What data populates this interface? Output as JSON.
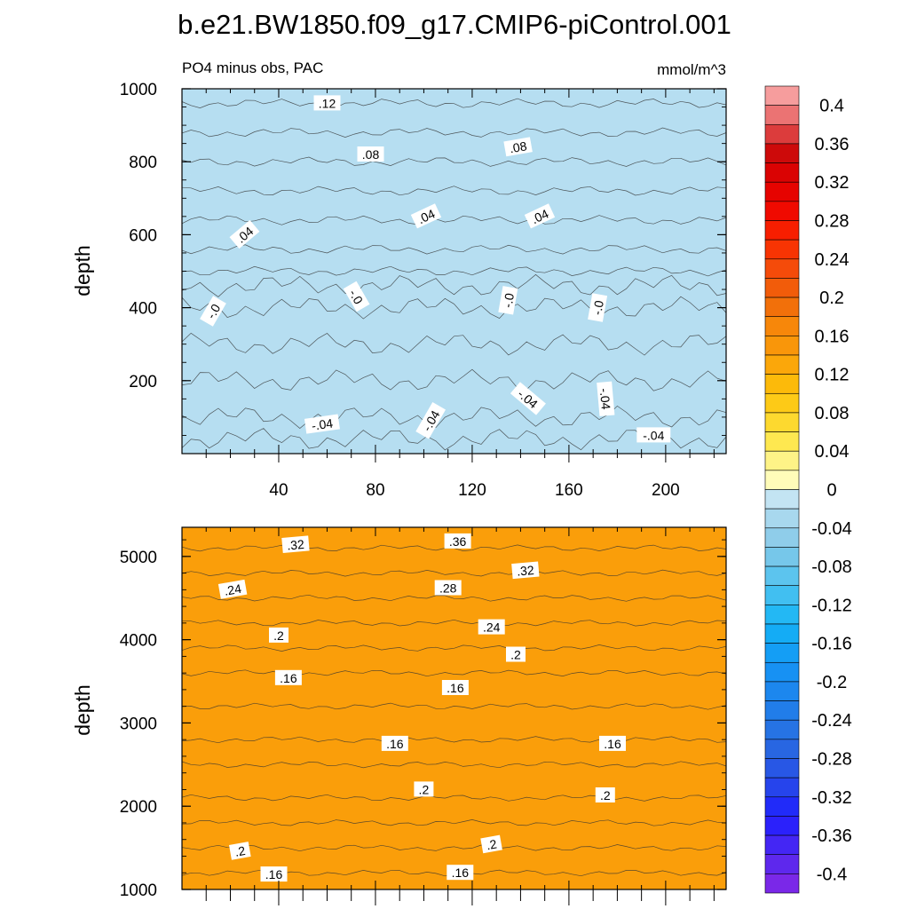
{
  "title": "b.e21.BW1850.f09_g17.CMIP6-piControl.001",
  "chart_data": [
    {
      "type": "contour",
      "panel": "upper",
      "subtitle_left": "PO4 minus obs, PAC",
      "subtitle_right": "mmol/m^3",
      "ylabel": "depth",
      "xlim": [
        0,
        225
      ],
      "ylim": [
        1000,
        0
      ],
      "x_ticks": [
        40,
        80,
        120,
        160,
        200
      ],
      "x_tick_labels": [
        "40",
        "80",
        "120",
        "160",
        "200"
      ],
      "y_ticks": [
        200,
        400,
        600,
        800,
        1000
      ],
      "y_tick_labels": [
        "200",
        "400",
        "600",
        "800",
        "1000"
      ],
      "bands": [
        {
          "depth": 0,
          "value": -0.02
        },
        {
          "depth": 40,
          "value": -0.03
        },
        {
          "depth": 100,
          "value": -0.04
        },
        {
          "depth": 200,
          "value": -0.03
        },
        {
          "depth": 300,
          "value": -0.02
        },
        {
          "depth": 400,
          "value": -0.01
        },
        {
          "depth": 460,
          "value": 0.0
        },
        {
          "depth": 500,
          "value": 0.01
        },
        {
          "depth": 560,
          "value": 0.03
        },
        {
          "depth": 640,
          "value": 0.04
        },
        {
          "depth": 720,
          "value": 0.06
        },
        {
          "depth": 800,
          "value": 0.08
        },
        {
          "depth": 880,
          "value": 0.1
        },
        {
          "depth": 960,
          "value": 0.12
        },
        {
          "depth": 1000,
          "value": 0.13
        }
      ],
      "contour_labels": [
        {
          "text": "-.04",
          "x": 58,
          "depth": 80,
          "angle": -8
        },
        {
          "text": "-.04",
          "x": 103,
          "depth": 90,
          "angle": -60
        },
        {
          "text": "-.04",
          "x": 143,
          "depth": 150,
          "angle": 40
        },
        {
          "text": "-.04",
          "x": 175,
          "depth": 150,
          "angle": 85
        },
        {
          "text": "-.04",
          "x": 195,
          "depth": 50,
          "angle": 0
        },
        {
          "text": "-.0",
          "x": 13,
          "depth": 390,
          "angle": -60
        },
        {
          "text": "-.0",
          "x": 72,
          "depth": 430,
          "angle": 60
        },
        {
          "text": "-.0",
          "x": 135,
          "depth": 420,
          "angle": -80
        },
        {
          "text": "-.0",
          "x": 172,
          "depth": 400,
          "angle": -80
        },
        {
          "text": ".04",
          "x": 26,
          "depth": 600,
          "angle": -40
        },
        {
          "text": ".04",
          "x": 101,
          "depth": 650,
          "angle": -25
        },
        {
          "text": ".04",
          "x": 148,
          "depth": 650,
          "angle": -25
        },
        {
          "text": ".08",
          "x": 78,
          "depth": 820,
          "angle": 0
        },
        {
          "text": ".08",
          "x": 139,
          "depth": 840,
          "angle": -10
        },
        {
          "text": ".12",
          "x": 60,
          "depth": 960,
          "angle": 0
        }
      ]
    },
    {
      "type": "contour",
      "panel": "lower",
      "ylabel": "depth",
      "xlim": [
        0,
        225
      ],
      "ylim": [
        5350,
        1000
      ],
      "y_ticks": [
        1000,
        2000,
        3000,
        4000,
        5000
      ],
      "y_tick_labels": [
        "1000",
        "2000",
        "3000",
        "4000",
        "5000"
      ],
      "bands": [
        {
          "depth": 1000,
          "value": 0.14
        },
        {
          "depth": 1200,
          "value": 0.16
        },
        {
          "depth": 1500,
          "value": 0.18
        },
        {
          "depth": 1800,
          "value": 0.2
        },
        {
          "depth": 2100,
          "value": 0.2
        },
        {
          "depth": 2500,
          "value": 0.18
        },
        {
          "depth": 2800,
          "value": 0.16
        },
        {
          "depth": 3200,
          "value": 0.15
        },
        {
          "depth": 3600,
          "value": 0.16
        },
        {
          "depth": 3900,
          "value": 0.19
        },
        {
          "depth": 4200,
          "value": 0.23
        },
        {
          "depth": 4500,
          "value": 0.27
        },
        {
          "depth": 4800,
          "value": 0.31
        },
        {
          "depth": 5100,
          "value": 0.36
        },
        {
          "depth": 5350,
          "value": 0.42
        }
      ],
      "contour_labels": [
        {
          "text": ".16",
          "x": 38,
          "depth": 1180,
          "angle": 0
        },
        {
          "text": ".16",
          "x": 115,
          "depth": 1200,
          "angle": 0
        },
        {
          "text": ".2",
          "x": 24,
          "depth": 1460,
          "angle": -10
        },
        {
          "text": ".2",
          "x": 128,
          "depth": 1540,
          "angle": -10
        },
        {
          "text": ".2",
          "x": 100,
          "depth": 2200,
          "angle": 0
        },
        {
          "text": ".2",
          "x": 175,
          "depth": 2130,
          "angle": 0
        },
        {
          "text": ".16",
          "x": 88,
          "depth": 2750,
          "angle": 0
        },
        {
          "text": ".16",
          "x": 178,
          "depth": 2750,
          "angle": 0
        },
        {
          "text": ".16",
          "x": 44,
          "depth": 3540,
          "angle": 0
        },
        {
          "text": ".16",
          "x": 113,
          "depth": 3420,
          "angle": 0
        },
        {
          "text": ".2",
          "x": 138,
          "depth": 3820,
          "angle": 0
        },
        {
          "text": ".2",
          "x": 40,
          "depth": 4050,
          "angle": 0
        },
        {
          "text": ".24",
          "x": 128,
          "depth": 4150,
          "angle": 0
        },
        {
          "text": ".24",
          "x": 21,
          "depth": 4600,
          "angle": -10
        },
        {
          "text": ".28",
          "x": 110,
          "depth": 4620,
          "angle": 0
        },
        {
          "text": ".32",
          "x": 142,
          "depth": 4830,
          "angle": -5
        },
        {
          "text": ".32",
          "x": 47,
          "depth": 5140,
          "angle": -5
        },
        {
          "text": ".36",
          "x": 114,
          "depth": 5180,
          "angle": 0
        }
      ]
    }
  ],
  "colorbar": {
    "min": -0.42,
    "max": 0.42,
    "step": 0.02,
    "ticks": [
      {
        "value": 0.4,
        "label": "0.4"
      },
      {
        "value": 0.36,
        "label": "0.36"
      },
      {
        "value": 0.32,
        "label": "0.32"
      },
      {
        "value": 0.28,
        "label": "0.28"
      },
      {
        "value": 0.24,
        "label": "0.24"
      },
      {
        "value": 0.2,
        "label": "0.2"
      },
      {
        "value": 0.16,
        "label": "0.16"
      },
      {
        "value": 0.12,
        "label": "0.12"
      },
      {
        "value": 0.08,
        "label": "0.08"
      },
      {
        "value": 0.04,
        "label": "0.04"
      },
      {
        "value": 0,
        "label": "0"
      },
      {
        "value": -0.04,
        "label": "-0.04"
      },
      {
        "value": -0.08,
        "label": "-0.08"
      },
      {
        "value": -0.12,
        "label": "-0.12"
      },
      {
        "value": -0.16,
        "label": "-0.16"
      },
      {
        "value": -0.2,
        "label": "-0.2"
      },
      {
        "value": -0.24,
        "label": "-0.24"
      },
      {
        "value": -0.28,
        "label": "-0.28"
      },
      {
        "value": -0.32,
        "label": "-0.32"
      },
      {
        "value": -0.36,
        "label": "-0.36"
      },
      {
        "value": -0.4,
        "label": "-0.4"
      }
    ]
  }
}
